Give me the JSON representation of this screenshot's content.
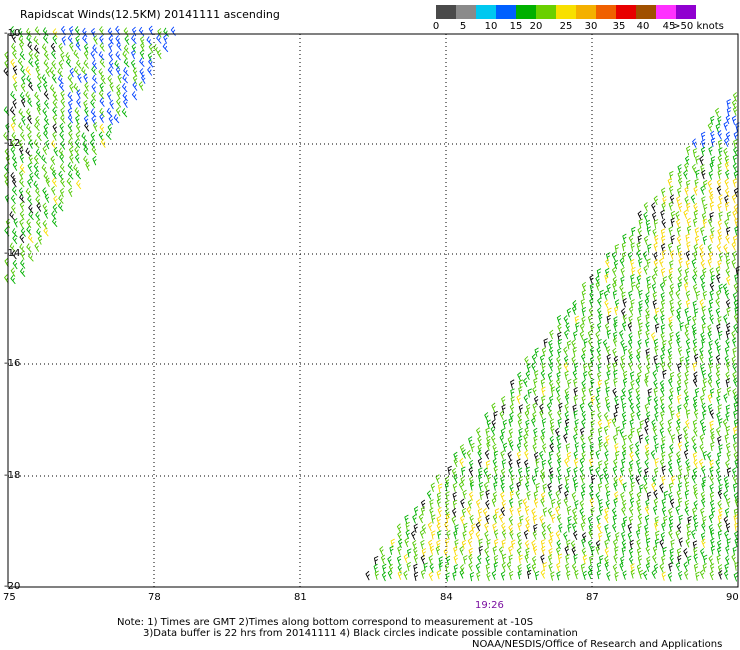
{
  "title": "Rapidscat Winds(12.5KM) 20141111 ascending",
  "legend": {
    "colors": [
      "#4a4a4a",
      "#8a8a8a",
      "#00c8f0",
      "#0060ff",
      "#00b000",
      "#6ad000",
      "#f8e000",
      "#f4b000",
      "#f06000",
      "#e80000",
      "#a05000",
      "#ff30ff",
      "#9000d0"
    ],
    "labels": [
      "0",
      "5",
      "10",
      "15",
      "20",
      "25",
      "30",
      "35",
      "40",
      "45",
      ">50 knots"
    ]
  },
  "axes": {
    "x_labels": [
      "75",
      "78",
      "81",
      "84",
      "87",
      "90"
    ],
    "y_labels": [
      "-10",
      "-12",
      "-14",
      "-16",
      "-18",
      "-20"
    ]
  },
  "time_label": "19:26",
  "notes": {
    "line1": "Note: 1) Times are GMT 2)Times along bottom correspond to measurement at -10S",
    "line2": "3)Data buffer is 22 hrs from 20141111 4) Black circles indicate possible contamination",
    "credit": "NOAA/NESDIS/Office of Research and Applications"
  }
}
